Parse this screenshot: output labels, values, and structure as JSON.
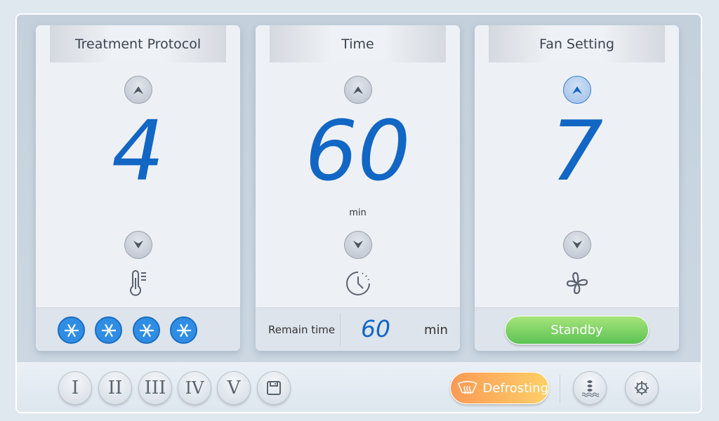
{
  "cards": {
    "protocol": {
      "title": "Treatment Protocol",
      "value": "4",
      "icon": "thermometer-icon",
      "levels": 4,
      "level_color": "#2f8ee3"
    },
    "time": {
      "title": "Time",
      "value": "60",
      "unit": "min",
      "icon": "clock-icon",
      "remain_label": "Remain time",
      "remain_value": "60",
      "remain_unit": "min"
    },
    "fan": {
      "title": "Fan Setting",
      "value": "7",
      "icon": "fan-icon",
      "status": "Standby",
      "status_color": "#5cc255"
    }
  },
  "bottom": {
    "presets": [
      "I",
      "II",
      "III",
      "IV",
      "V"
    ],
    "save_icon": "floppy-disk-icon",
    "defrost_label": "Defrosting",
    "defrost_color": "#f9a552",
    "water_icon": "water-level-icon",
    "settings_icon": "gear-icon"
  },
  "accent": "#1266c4"
}
